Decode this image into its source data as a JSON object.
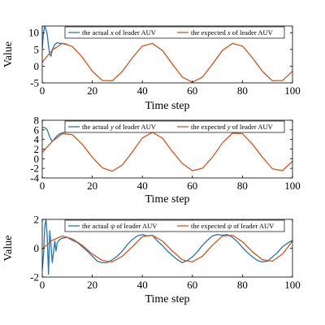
{
  "chart_data": [
    {
      "type": "line",
      "xlabel": "Time step",
      "ylabel": "Value",
      "xlim": [
        0,
        100
      ],
      "ylim": [
        -5,
        12
      ],
      "xticks": [
        0,
        20,
        40,
        60,
        80,
        100
      ],
      "yticks": [
        -5,
        0,
        5,
        10
      ],
      "legend_position": "top",
      "series": [
        {
          "name": "the actual x of leader AUV",
          "name_prefix": "the actual ",
          "name_symbol": "x",
          "name_suffix": " of leader AUV",
          "color": "#1f77b4",
          "x": [
            0,
            0.5,
            1,
            1.5,
            2,
            2.5,
            3,
            3.5,
            4,
            5,
            6,
            7,
            8,
            9,
            10
          ],
          "y": [
            5.5,
            10,
            12,
            11,
            9.5,
            6,
            3.5,
            3,
            4.8,
            6.5,
            7,
            6.8,
            6.8,
            6.7,
            6.5
          ]
        },
        {
          "name": "the expected x of leader AUV",
          "name_prefix": "the expected ",
          "name_symbol": "x",
          "name_suffix": " of leader AUV",
          "color": "#d95319",
          "x": [
            0,
            4,
            8,
            12,
            16,
            20,
            24,
            28,
            32,
            36,
            40,
            44,
            48,
            52,
            56,
            60,
            64,
            68,
            72,
            76,
            80,
            84,
            88,
            92,
            96,
            100
          ],
          "y": [
            1.2,
            4.8,
            6.8,
            5.9,
            2.7,
            -1.5,
            -4.3,
            -4.4,
            -1.6,
            2.5,
            6.0,
            6.8,
            4.7,
            0.6,
            -3.3,
            -4.8,
            -3.3,
            0.6,
            4.7,
            6.8,
            6.0,
            2.5,
            -1.6,
            -4.4,
            -4.3,
            -1.5
          ]
        }
      ]
    },
    {
      "type": "line",
      "xlabel": "Time step",
      "ylabel": "",
      "xlim": [
        0,
        100
      ],
      "ylim": [
        -4,
        8
      ],
      "xticks": [
        0,
        20,
        40,
        60,
        80,
        100
      ],
      "yticks": [
        -4,
        -2,
        0,
        2,
        4,
        6,
        8
      ],
      "legend_position": "top",
      "series": [
        {
          "name": "the actual y of leader AUV",
          "name_prefix": "the actual ",
          "name_symbol": "y",
          "name_suffix": " of leader AUV",
          "color": "#1f77b4",
          "x": [
            0,
            1,
            2,
            3,
            4,
            5,
            6,
            7,
            8,
            10
          ],
          "y": [
            6.5,
            6.5,
            6.0,
            4.5,
            3.6,
            4.2,
            4.8,
            5.2,
            5.4,
            5.5
          ]
        },
        {
          "name": "the expected y of leader AUV",
          "name_prefix": "the expected ",
          "name_symbol": "y",
          "name_suffix": " of leader AUV",
          "color": "#d95319",
          "x": [
            0,
            4,
            8,
            12,
            16,
            20,
            24,
            28,
            32,
            36,
            40,
            44,
            48,
            52,
            56,
            60,
            64,
            68,
            72,
            76,
            80,
            84,
            88,
            92,
            96,
            100
          ],
          "y": [
            1.3,
            3.6,
            5.2,
            5.0,
            3.0,
            0.3,
            -1.9,
            -2.6,
            -1.3,
            1.4,
            4.3,
            5.5,
            4.3,
            1.5,
            -1.0,
            -2.5,
            -2.0,
            0.3,
            3.3,
            5.3,
            5.2,
            3.0,
            0.3,
            -2.1,
            -2.5,
            -0.5
          ]
        }
      ]
    },
    {
      "type": "line",
      "xlabel": "Time step",
      "ylabel": "Value",
      "xlim": [
        0,
        100
      ],
      "ylim": [
        -2,
        2
      ],
      "xticks": [
        0,
        20,
        40,
        60,
        80,
        100
      ],
      "yticks": [
        -2,
        0,
        2
      ],
      "legend_position": "top",
      "series": [
        {
          "name": "the actual ψ of leader AUV",
          "name_prefix": "the actual ",
          "name_symbol": "ψ",
          "name_suffix": " of leader AUV",
          "color": "#1f77b4",
          "x": [
            0,
            0.5,
            1,
            1.5,
            2,
            2.5,
            3,
            3.5,
            4,
            4.5,
            5,
            5.5,
            6,
            7,
            8,
            10,
            12,
            14,
            16,
            18,
            20,
            22,
            24,
            26,
            28,
            30,
            32,
            34,
            36,
            38,
            40,
            42,
            44,
            46,
            48,
            50,
            52,
            54,
            56,
            58,
            60,
            62,
            64,
            66,
            68,
            70,
            72,
            74,
            76,
            78,
            80,
            82,
            84,
            86,
            88,
            90,
            92,
            94,
            96,
            98,
            100
          ],
          "y": [
            -1.5,
            -0.5,
            1.5,
            2.0,
            0.8,
            -1.8,
            1.2,
            0.2,
            -1.0,
            -0.3,
            0.5,
            -0.2,
            0.4,
            0.6,
            0.7,
            0.75,
            0.55,
            0.4,
            0.1,
            -0.2,
            -0.55,
            -0.9,
            -1.0,
            -1.0,
            -0.8,
            -0.55,
            -0.2,
            0.25,
            0.6,
            0.85,
            0.95,
            0.85,
            0.9,
            0.5,
            0.2,
            -0.2,
            -0.5,
            -0.8,
            -1.0,
            -0.85,
            -0.6,
            -0.25,
            0.2,
            0.55,
            0.85,
            0.95,
            0.9,
            0.95,
            0.75,
            0.45,
            0.05,
            -0.3,
            -0.6,
            -0.85,
            -0.95,
            -0.9,
            -0.6,
            -0.3,
            0.1,
            0.35,
            0.55
          ]
        },
        {
          "name": "the expected ψ of leader AUV",
          "name_prefix": "the expected ",
          "name_symbol": "ψ",
          "name_suffix": " of leader AUV",
          "color": "#d95319",
          "x": [
            0,
            4,
            8,
            12,
            16,
            20,
            24,
            28,
            32,
            36,
            40,
            44,
            48,
            52,
            56,
            60,
            64,
            68,
            72,
            76,
            80,
            84,
            88,
            92,
            96,
            100
          ],
          "y": [
            -0.05,
            0.55,
            0.85,
            0.65,
            0.2,
            -0.4,
            -0.85,
            -0.95,
            -0.55,
            0.1,
            0.8,
            0.9,
            0.5,
            -0.2,
            -0.8,
            -0.95,
            -0.55,
            0.2,
            0.85,
            0.9,
            0.45,
            -0.25,
            -0.8,
            -0.9,
            -0.4,
            0.5
          ]
        }
      ]
    }
  ]
}
